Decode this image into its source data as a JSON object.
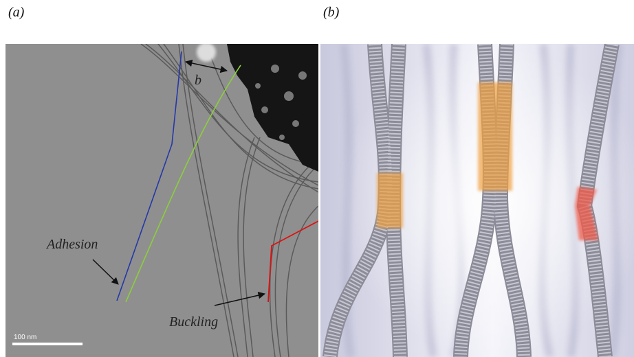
{
  "panels": [
    {
      "label": "(a)",
      "annotations": {
        "distance": "b",
        "adhesion": "Adhesion",
        "buckling": "Buckling"
      },
      "scale_bar": "100 nm"
    },
    {
      "label": "(b)"
    }
  ]
}
